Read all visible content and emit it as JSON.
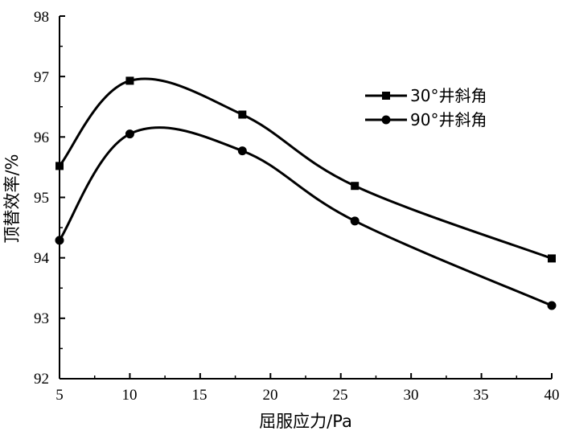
{
  "chart_data": {
    "type": "line",
    "title": "",
    "xlabel": "屈服应力/Pa",
    "ylabel": "顶替效率/%",
    "xlim": [
      5,
      40
    ],
    "ylim": [
      92,
      98
    ],
    "xticks": [
      "5",
      "10",
      "15",
      "20",
      "25",
      "30",
      "35",
      "40"
    ],
    "yticks": [
      "92",
      "93",
      "94",
      "95",
      "96",
      "97",
      "98"
    ],
    "grid": false,
    "legend_position": "top-right",
    "series": [
      {
        "name": "30°井斜角",
        "marker": "square",
        "x": [
          5,
          10,
          18,
          26,
          40
        ],
        "y": [
          95.52,
          96.93,
          96.37,
          95.19,
          93.99
        ]
      },
      {
        "name": "90°井斜角",
        "marker": "circle",
        "x": [
          5,
          10,
          18,
          26,
          40
        ],
        "y": [
          94.29,
          96.05,
          95.77,
          94.61,
          93.21
        ]
      }
    ]
  }
}
